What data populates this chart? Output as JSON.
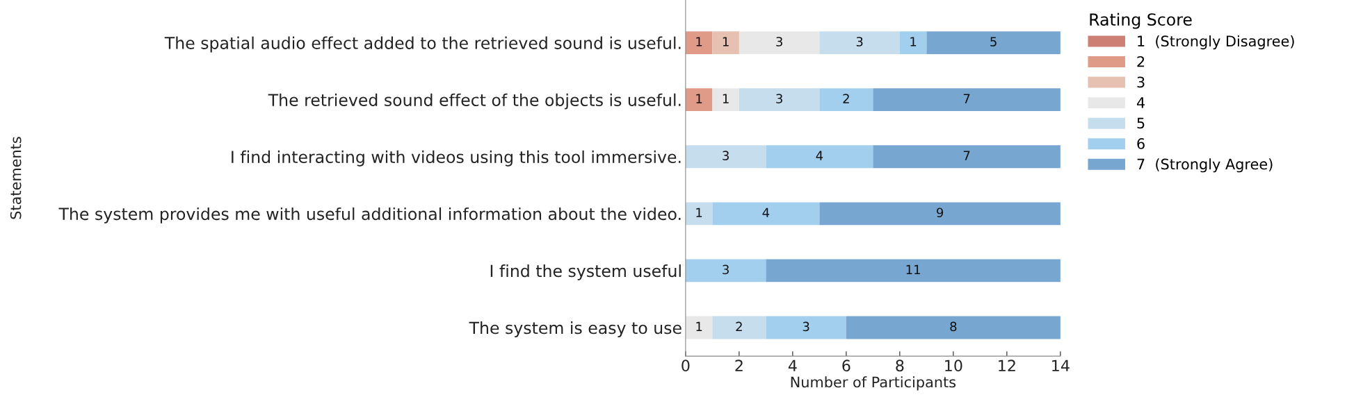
{
  "chart_data": {
    "type": "bar",
    "orientation": "horizontal",
    "stacked": true,
    "data_labels": true,
    "categories": [
      "The spatial audio effect added to the retrieved sound is useful.",
      "The retrieved sound effect of the objects is useful.",
      "I find interacting with videos using this tool immersive.",
      "The system provides me with useful additional information about the video.",
      "I find the system useful",
      "The system is easy to use"
    ],
    "series": [
      {
        "name": "1  (Strongly Disagree)",
        "color": "#cd7f74",
        "values": [
          null,
          null,
          null,
          null,
          null,
          null
        ]
      },
      {
        "name": "2",
        "color": "#e09a88",
        "values": [
          1,
          1,
          null,
          null,
          null,
          null
        ]
      },
      {
        "name": "3",
        "color": "#e6c0b0",
        "values": [
          1,
          null,
          null,
          null,
          null,
          null
        ]
      },
      {
        "name": "4",
        "color": "#e8e8e8",
        "values": [
          3,
          1,
          null,
          null,
          null,
          1
        ]
      },
      {
        "name": "5",
        "color": "#c6ddee",
        "values": [
          3,
          3,
          3,
          1,
          null,
          2
        ]
      },
      {
        "name": "6",
        "color": "#a3cfef",
        "values": [
          1,
          2,
          4,
          4,
          3,
          3
        ]
      },
      {
        "name": "7  (Strongly Agree)",
        "color": "#77a6d1",
        "values": [
          5,
          7,
          7,
          9,
          11,
          8
        ]
      }
    ],
    "xlim": [
      0,
      14
    ],
    "xticks": [
      0,
      2,
      4,
      6,
      8,
      10,
      12,
      14
    ],
    "xlabel": "Number of Participants",
    "ylabel": "Statements",
    "legend_title": "Rating Score",
    "legend": "right"
  }
}
